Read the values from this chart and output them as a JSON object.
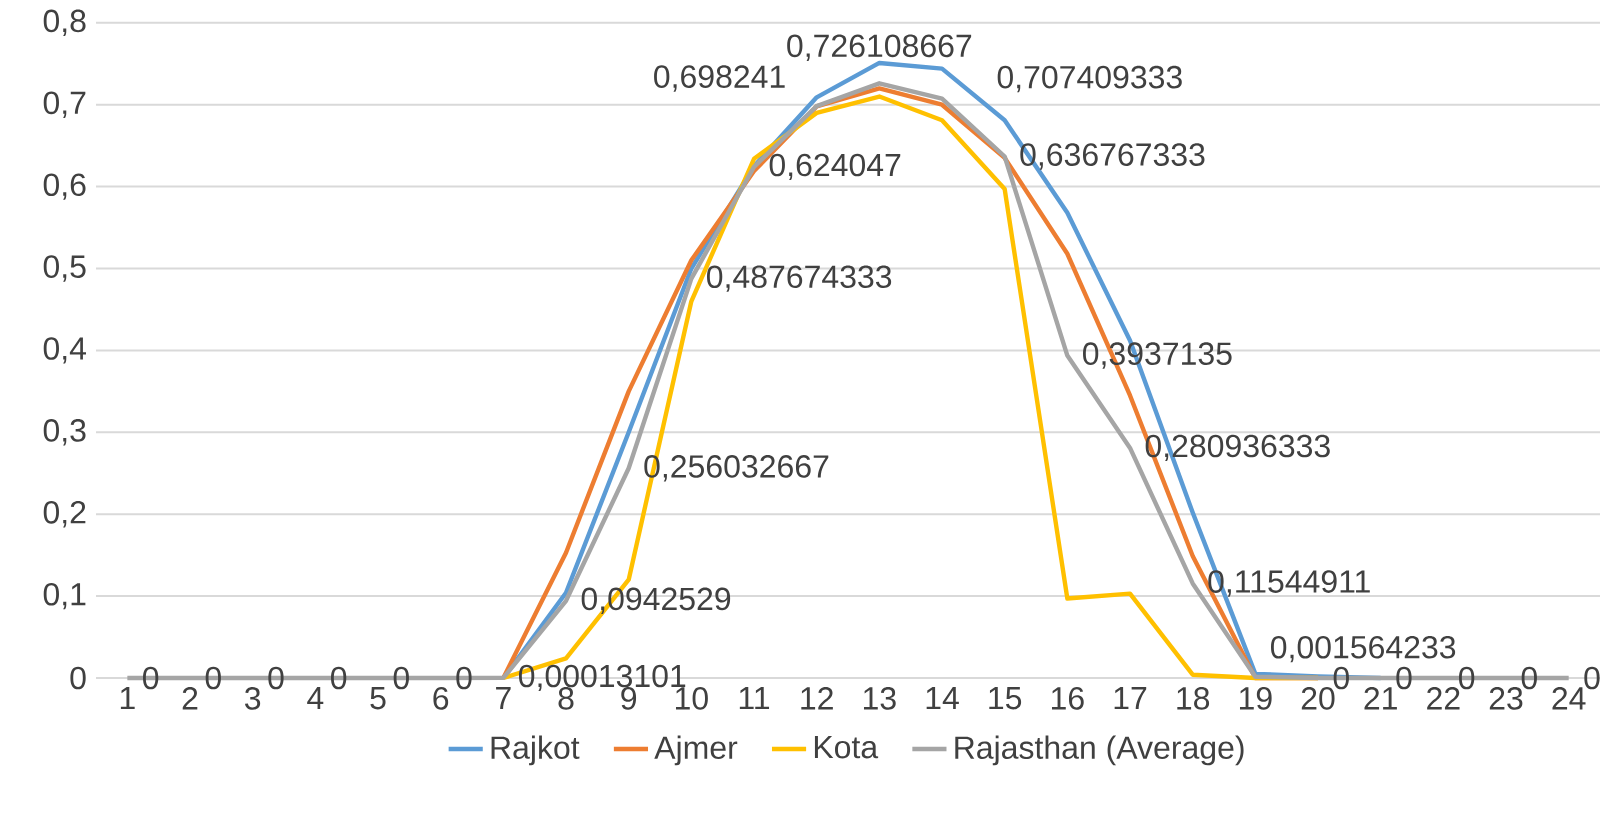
{
  "chart_data": {
    "type": "line",
    "categories": [
      "1",
      "2",
      "3",
      "4",
      "5",
      "6",
      "7",
      "8",
      "9",
      "10",
      "11",
      "12",
      "13",
      "14",
      "15",
      "16",
      "17",
      "18",
      "19",
      "20",
      "21",
      "22",
      "23",
      "24"
    ],
    "series": [
      {
        "name": "Rajkot",
        "color": "#5b9bd5",
        "values": [
          null,
          null,
          null,
          null,
          null,
          null,
          0,
          0.104,
          0.3,
          0.5,
          0.625,
          0.709,
          0.751,
          0.744,
          0.681,
          0.568,
          0.412,
          0.202,
          0.005,
          0.002,
          0,
          null,
          null,
          null
        ]
      },
      {
        "name": "Ajmer",
        "color": "#ed7d31",
        "values": [
          null,
          null,
          null,
          null,
          null,
          null,
          0,
          0.153,
          0.35,
          0.51,
          0.619,
          0.698,
          0.72,
          0.7,
          0.635,
          0.518,
          0.345,
          0.149,
          0,
          0,
          null,
          null,
          null,
          null
        ]
      },
      {
        "name": "Kota",
        "color": "#ffc000",
        "values": [
          null,
          null,
          null,
          null,
          null,
          null,
          0,
          0.024,
          0.12,
          0.46,
          0.634,
          0.69,
          0.71,
          0.681,
          0.597,
          0.097,
          0.103,
          0.004,
          0,
          0,
          null,
          null,
          null,
          null
        ]
      },
      {
        "name": "Rajasthan (Average)",
        "color": "#a5a5a5",
        "values": [
          0,
          0,
          0,
          0,
          0,
          0,
          0.00013101,
          0.0942529,
          0.256032667,
          0.487674333,
          0.624047,
          0.698241,
          0.726108667,
          0.707409333,
          0.636767333,
          0.3937135,
          0.280936333,
          0.11544911,
          0.001564233,
          0,
          0,
          0,
          0,
          0
        ],
        "value_labels": [
          "0",
          "0",
          "0",
          "0",
          "0",
          "0",
          "0,00013101",
          "0,0942529",
          "0,256032667",
          "0,487674333",
          "0,624047",
          "0,698241",
          "0,726108667",
          "0,707409333",
          "0,636767333",
          "0,3937135",
          "0,280936333",
          "0,11544911",
          "0,001564233",
          "0",
          "0",
          "0",
          "0",
          "0"
        ]
      }
    ],
    "ylim": [
      0,
      0.8
    ],
    "yticks": [
      {
        "value": 0,
        "label": "0"
      },
      {
        "value": 0.1,
        "label": "0,1"
      },
      {
        "value": 0.2,
        "label": "0,2"
      },
      {
        "value": 0.3,
        "label": "0,3"
      },
      {
        "value": 0.4,
        "label": "0,4"
      },
      {
        "value": 0.5,
        "label": "0,5"
      },
      {
        "value": 0.6,
        "label": "0,6"
      },
      {
        "value": 0.7,
        "label": "0,7"
      },
      {
        "value": 0.8,
        "label": "0,8"
      }
    ],
    "grid": "y",
    "legend": "bottom",
    "marker": "none",
    "line_style": "solid"
  }
}
